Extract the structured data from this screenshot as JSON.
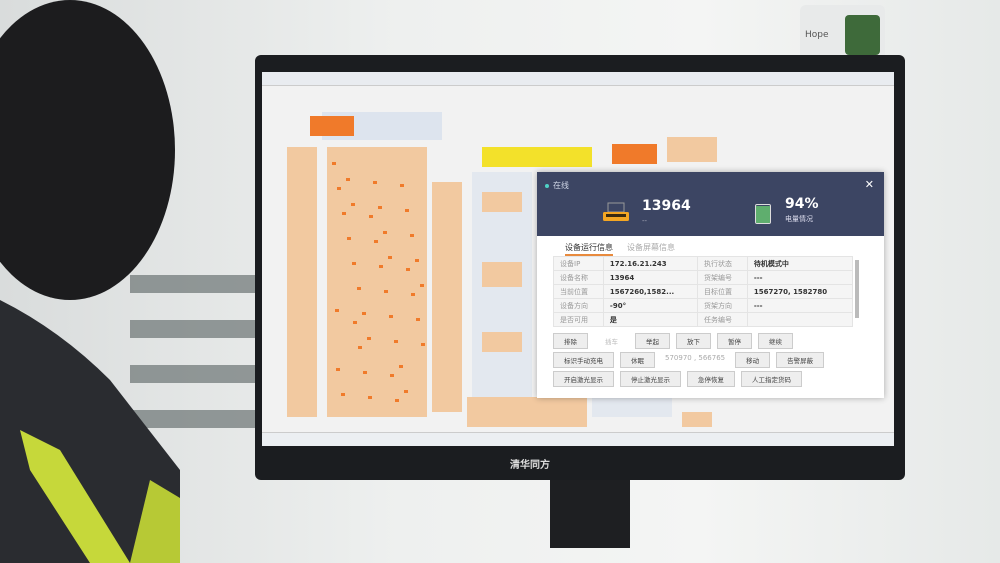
{
  "monitor_brand": "清华同方",
  "jar_label": "Hope",
  "panel": {
    "status": "在线",
    "device_id": "13964",
    "device_sub": "--",
    "battery_percent": "94%",
    "battery_level": 0.94,
    "battery_label": "电量情况",
    "tabs": [
      {
        "label": "设备运行信息",
        "active": true
      },
      {
        "label": "设备屏幕信息",
        "active": false
      }
    ],
    "rows": [
      [
        "设备IP",
        "172.16.21.243",
        "执行状态",
        "待机模式中"
      ],
      [
        "设备名称",
        "13964",
        "货架编号",
        "---"
      ],
      [
        "当前位置",
        "1567260,1582...",
        "目标位置",
        "1567270, 1582780"
      ],
      [
        "设备方向",
        "-90°",
        "货架方向",
        "---"
      ],
      [
        "是否可用",
        "是",
        "任务编号",
        ""
      ]
    ],
    "buttons_row1": [
      "排除",
      "插车",
      "举起",
      "放下",
      "暂停",
      "继续"
    ],
    "buttons_row2": [
      "标识手动充电",
      "休眠"
    ],
    "coord_value": "570970 , 566765",
    "buttons_row2b": [
      "移动",
      "告警屏蔽"
    ],
    "buttons_row3": [
      "开启激光显示",
      "停止激光显示",
      "急停恢复",
      "人工指定货码"
    ]
  },
  "colors": {
    "header": "#3c4563",
    "accent": "#e88a3d",
    "map_shelf": "#f2c9a0",
    "map_highlight": "#f07a2a",
    "map_yellow": "#f3e12a"
  }
}
